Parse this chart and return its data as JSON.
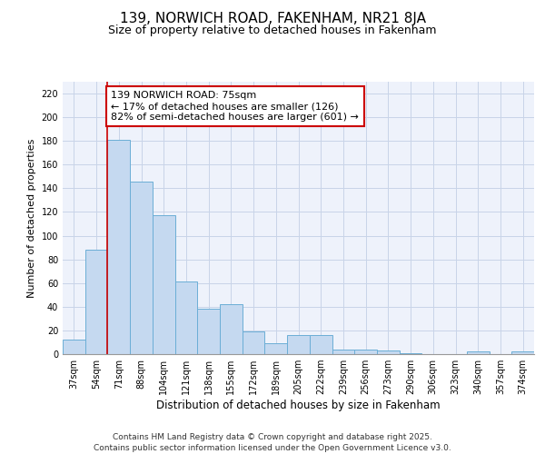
{
  "title": "139, NORWICH ROAD, FAKENHAM, NR21 8JA",
  "subtitle": "Size of property relative to detached houses in Fakenham",
  "xlabel": "Distribution of detached houses by size in Fakenham",
  "ylabel": "Number of detached properties",
  "categories": [
    "37sqm",
    "54sqm",
    "71sqm",
    "88sqm",
    "104sqm",
    "121sqm",
    "138sqm",
    "155sqm",
    "172sqm",
    "189sqm",
    "205sqm",
    "222sqm",
    "239sqm",
    "256sqm",
    "273sqm",
    "290sqm",
    "306sqm",
    "323sqm",
    "340sqm",
    "357sqm",
    "374sqm"
  ],
  "values": [
    12,
    88,
    181,
    146,
    117,
    61,
    38,
    42,
    19,
    9,
    16,
    16,
    4,
    4,
    3,
    1,
    0,
    0,
    2,
    0,
    2
  ],
  "bar_color": "#c5d9f0",
  "bar_edge_color": "#6baed6",
  "grid_color": "#c8d4e8",
  "background_color": "#eef2fb",
  "annotation_text": "139 NORWICH ROAD: 75sqm\n← 17% of detached houses are smaller (126)\n82% of semi-detached houses are larger (601) →",
  "vline_x": 2,
  "vline_color": "#cc0000",
  "box_color": "#cc0000",
  "ylim": [
    0,
    230
  ],
  "yticks": [
    0,
    20,
    40,
    60,
    80,
    100,
    120,
    140,
    160,
    180,
    200,
    220
  ],
  "footer_line1": "Contains HM Land Registry data © Crown copyright and database right 2025.",
  "footer_line2": "Contains public sector information licensed under the Open Government Licence v3.0.",
  "title_fontsize": 11,
  "subtitle_fontsize": 9,
  "tick_fontsize": 7,
  "ylabel_fontsize": 8,
  "xlabel_fontsize": 8.5,
  "annotation_fontsize": 8,
  "footer_fontsize": 6.5
}
